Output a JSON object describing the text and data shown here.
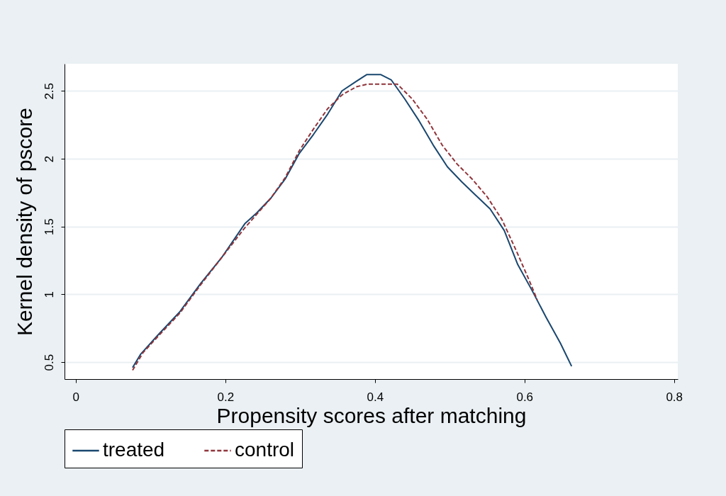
{
  "chart_data": {
    "type": "line",
    "xlabel": "Propensity scores after matching",
    "ylabel": "Kernel density of pscore",
    "xlim": [
      -0.015,
      0.805
    ],
    "xticks": [
      0,
      0.2,
      0.4,
      0.6,
      0.8
    ],
    "ylim": [
      0.375,
      2.7
    ],
    "yticks": [
      0.5,
      1,
      1.5,
      2,
      2.5
    ],
    "grid": "y",
    "legend": "bottom",
    "series": [
      {
        "name": "treated",
        "color": "#1a476f",
        "line_style": "solid",
        "x": [
          0.076,
          0.087,
          0.11,
          0.139,
          0.167,
          0.195,
          0.226,
          0.242,
          0.261,
          0.28,
          0.299,
          0.318,
          0.337,
          0.356,
          0.375,
          0.389,
          0.408,
          0.422,
          0.44,
          0.459,
          0.478,
          0.497,
          0.516,
          0.535,
          0.554,
          0.573,
          0.591,
          0.61,
          0.629,
          0.648,
          0.663
        ],
        "values": [
          0.46,
          0.56,
          0.7,
          0.87,
          1.08,
          1.27,
          1.52,
          1.6,
          1.71,
          1.85,
          2.04,
          2.18,
          2.33,
          2.5,
          2.57,
          2.62,
          2.62,
          2.58,
          2.44,
          2.28,
          2.1,
          1.94,
          1.83,
          1.73,
          1.63,
          1.47,
          1.22,
          1.03,
          0.83,
          0.64,
          0.47
        ]
      },
      {
        "name": "control",
        "color": "#90353b",
        "line_style": "dashed",
        "x": [
          0.076,
          0.09,
          0.11,
          0.139,
          0.167,
          0.195,
          0.226,
          0.242,
          0.261,
          0.28,
          0.299,
          0.318,
          0.337,
          0.356,
          0.375,
          0.39,
          0.41,
          0.43,
          0.45,
          0.47,
          0.49,
          0.51,
          0.53,
          0.55,
          0.57,
          0.59,
          0.605,
          0.617
        ],
        "values": [
          0.44,
          0.57,
          0.69,
          0.86,
          1.07,
          1.27,
          1.49,
          1.59,
          1.71,
          1.86,
          2.06,
          2.22,
          2.37,
          2.47,
          2.53,
          2.55,
          2.55,
          2.55,
          2.44,
          2.29,
          2.1,
          1.96,
          1.85,
          1.72,
          1.55,
          1.31,
          1.12,
          0.96
        ]
      }
    ]
  }
}
